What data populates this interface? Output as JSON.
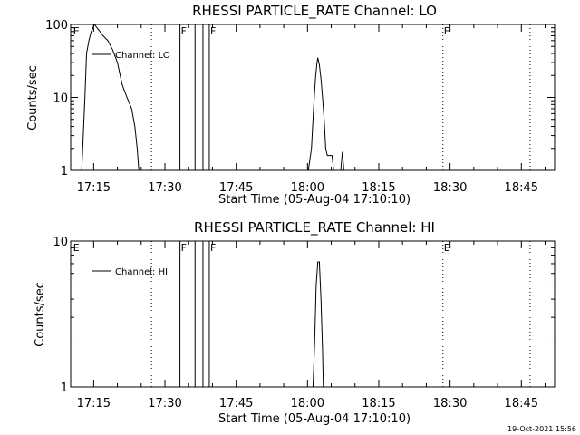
{
  "chart_data": [
    {
      "type": "line",
      "title": "RHESSI PARTICLE_RATE Channel: LO",
      "xlabel": "Start Time (05-Aug-04 17:10:10)",
      "ylabel": "Counts/sec",
      "yscale": "log",
      "ylim": [
        1,
        100
      ],
      "xlim": [
        "17:10:10",
        "18:52:00"
      ],
      "xticks": [
        "17:15",
        "17:30",
        "17:45",
        "18:00",
        "18:15",
        "18:30",
        "18:45"
      ],
      "yticks": [
        "1",
        "10",
        "100"
      ],
      "grid": false,
      "legend": {
        "entries": [
          "Channel: LO"
        ],
        "placement": "top-left"
      },
      "markers": [
        {
          "label": "E",
          "time": "17:10:30",
          "style": "label"
        },
        {
          "label": "",
          "time": "17:27:10",
          "style": "dotted"
        },
        {
          "label": "F",
          "time": "17:33:10",
          "style": "solid"
        },
        {
          "label": "",
          "time": "17:36:20",
          "style": "solid"
        },
        {
          "label": "",
          "time": "17:38:00",
          "style": "solid"
        },
        {
          "label": "F",
          "time": "17:39:20",
          "style": "solid"
        },
        {
          "label": "E",
          "time": "18:28:30",
          "style": "dotted"
        },
        {
          "label": "",
          "time": "18:46:50",
          "style": "dotted"
        }
      ],
      "series": [
        {
          "name": "Channel: LO",
          "segments": [
            [
              [
                "17:12:30",
                1
              ],
              [
                "17:13:10",
                10
              ],
              [
                "17:13:30",
                40
              ],
              [
                "17:14:00",
                60
              ],
              [
                "17:14:30",
                80
              ],
              [
                "17:15:10",
                100
              ],
              [
                "17:16:00",
                85
              ],
              [
                "17:17:00",
                70
              ],
              [
                "17:18:00",
                60
              ],
              [
                "17:19:00",
                45
              ],
              [
                "17:20:00",
                30
              ],
              [
                "17:21:00",
                15
              ],
              [
                "17:22:00",
                10
              ],
              [
                "17:23:00",
                7
              ],
              [
                "17:23:40",
                4
              ],
              [
                "17:24:10",
                2
              ],
              [
                "17:24:30",
                1
              ]
            ],
            [
              [
                "18:00:10",
                1
              ],
              [
                "18:00:50",
                2
              ],
              [
                "18:01:20",
                8
              ],
              [
                "18:01:40",
                18
              ],
              [
                "18:02:00",
                30
              ],
              [
                "18:02:10",
                35
              ],
              [
                "18:02:30",
                28
              ],
              [
                "18:02:50",
                18
              ],
              [
                "18:03:10",
                10
              ],
              [
                "18:03:30",
                5
              ],
              [
                "18:03:50",
                2
              ],
              [
                "18:04:10",
                1.6
              ],
              [
                "18:05:10",
                1.6
              ],
              [
                "18:05:30",
                1
              ]
            ],
            [
              [
                "18:07:00",
                1
              ],
              [
                "18:07:20",
                1.8
              ],
              [
                "18:07:40",
                1
              ]
            ]
          ]
        }
      ]
    },
    {
      "type": "line",
      "title": "RHESSI PARTICLE_RATE Channel: HI",
      "xlabel": "Start Time (05-Aug-04 17:10:10)",
      "ylabel": "Counts/sec",
      "yscale": "log",
      "ylim": [
        1,
        10
      ],
      "xlim": [
        "17:10:10",
        "18:52:00"
      ],
      "xticks": [
        "17:15",
        "17:30",
        "17:45",
        "18:00",
        "18:15",
        "18:30",
        "18:45"
      ],
      "yticks": [
        "1",
        "10"
      ],
      "grid": false,
      "legend": {
        "entries": [
          "Channel: HI"
        ],
        "placement": "top-left"
      },
      "markers": [
        {
          "label": "E",
          "time": "17:10:30",
          "style": "label"
        },
        {
          "label": "",
          "time": "17:27:10",
          "style": "dotted"
        },
        {
          "label": "F",
          "time": "17:33:10",
          "style": "solid"
        },
        {
          "label": "",
          "time": "17:36:20",
          "style": "solid"
        },
        {
          "label": "",
          "time": "17:38:00",
          "style": "solid"
        },
        {
          "label": "F",
          "time": "17:39:20",
          "style": "solid"
        },
        {
          "label": "E",
          "time": "18:28:30",
          "style": "dotted"
        },
        {
          "label": "",
          "time": "18:46:50",
          "style": "dotted"
        }
      ],
      "series": [
        {
          "name": "Channel: HI",
          "segments": [
            [
              [
                "18:01:10",
                1
              ],
              [
                "18:01:30",
                2
              ],
              [
                "18:01:50",
                5
              ],
              [
                "18:02:10",
                7.2
              ],
              [
                "18:02:30",
                7.2
              ],
              [
                "18:02:50",
                4
              ],
              [
                "18:03:10",
                1.8
              ],
              [
                "18:03:20",
                1
              ]
            ]
          ]
        }
      ]
    }
  ],
  "footer": {
    "timestamp": "19-Oct-2021 15:56"
  },
  "colors": {
    "background": "#ffffff",
    "foreground": "#000000"
  }
}
